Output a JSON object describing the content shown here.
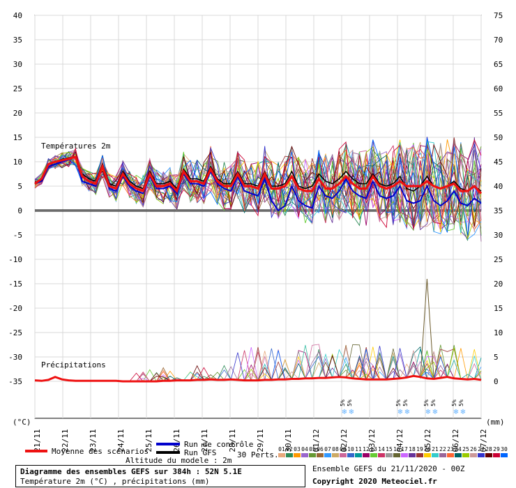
{
  "chart_data": {
    "type": "line",
    "title": "Diagramme des ensembles GEFS sur 384h : 52N 5.1E",
    "subtitle": "Température 2m (°C) , précipitations (mm)",
    "x_dates": [
      "21/11",
      "22/11",
      "23/11",
      "24/11",
      "25/11",
      "26/11",
      "27/11",
      "28/11",
      "29/11",
      "30/11",
      "01/12",
      "02/12",
      "03/12",
      "04/12",
      "05/12",
      "06/12",
      "07/12"
    ],
    "y_left_label": "(°C)",
    "y_right_label": "(mm)",
    "y_left_range": [
      -35,
      40
    ],
    "y_right_range": [
      0,
      75
    ],
    "y_left_ticks": [
      40,
      35,
      30,
      25,
      20,
      15,
      10,
      5,
      0,
      -5,
      -10,
      -15,
      -20,
      -25,
      -30,
      -35
    ],
    "y_right_ticks": [
      75,
      70,
      65,
      60,
      55,
      50,
      45,
      40,
      35,
      30,
      25,
      20,
      15,
      10,
      5,
      0
    ],
    "section_temp": "Températures 2m",
    "section_precip": "Précipitations",
    "temp_mean": [
      5.5,
      6.5,
      9.5,
      10,
      10.3,
      10.6,
      11,
      7,
      6,
      5.5,
      9,
      5,
      4.5,
      7.5,
      5.5,
      4.5,
      4,
      7.5,
      5,
      5,
      5.5,
      4,
      8,
      6,
      6,
      5.5,
      8.5,
      6,
      5,
      5,
      7.5,
      5,
      5,
      4.5,
      7.5,
      4.5,
      4.5,
      5,
      7,
      4.5,
      4,
      4,
      6.5,
      4.5,
      4.5,
      5.5,
      7,
      5.5,
      4.5,
      4.5,
      7,
      5,
      4.5,
      5,
      6,
      5,
      5,
      5,
      6,
      5,
      4.5,
      5,
      5.5,
      4,
      4,
      5,
      3.5
    ],
    "temp_control": [
      5.5,
      6,
      9,
      9.5,
      10,
      10.5,
      11,
      6,
      5.5,
      5,
      9,
      4.5,
      4,
      7,
      5,
      4,
      3.5,
      7,
      4.5,
      4.5,
      5,
      3.5,
      7.5,
      5.5,
      5.5,
      5,
      8,
      5.5,
      4.5,
      4,
      7,
      4,
      3.5,
      3,
      6.5,
      2,
      0,
      1,
      5,
      2,
      1,
      0.5,
      5,
      3,
      2.5,
      4,
      6.5,
      4,
      3,
      2.5,
      6,
      3,
      2.5,
      3,
      5,
      2,
      1.5,
      2,
      5,
      2,
      1,
      2,
      4,
      1.5,
      1,
      2.5,
      1.5
    ],
    "temp_gfs": [
      5.5,
      6.3,
      9.5,
      10,
      10.5,
      10.8,
      11,
      7.5,
      6.5,
      6,
      9.5,
      5.5,
      5,
      8,
      6,
      5,
      4.5,
      8,
      5.5,
      5.5,
      6,
      4.5,
      8.5,
      6.5,
      6.5,
      6,
      9,
      6.5,
      5.5,
      5.5,
      8,
      5.5,
      5.5,
      5,
      8,
      5,
      5,
      5.5,
      8,
      5,
      4.5,
      5,
      7.5,
      6,
      5.5,
      6.5,
      8,
      6.5,
      5.5,
      5.5,
      7.5,
      5.5,
      5,
      5.5,
      7,
      4.5,
      4,
      5,
      7,
      5,
      4.5,
      5,
      6,
      4.5,
      4,
      5,
      4
    ],
    "precip_mean": [
      0.2,
      0.1,
      0.3,
      0.9,
      0.4,
      0.2,
      0.1,
      0.1,
      0.1,
      0.1,
      0.1,
      0.1,
      0.1,
      0,
      0,
      0,
      0,
      0,
      0,
      0.1,
      0.1,
      0.2,
      0.2,
      0.2,
      0.3,
      0.3,
      0.4,
      0.3,
      0.3,
      0.4,
      0.3,
      0.2,
      0.2,
      0.2,
      0.3,
      0.3,
      0.4,
      0.4,
      0.5,
      0.5,
      0.6,
      0.6,
      0.7,
      0.7,
      0.8,
      0.9,
      0.8,
      0.6,
      0.5,
      0.4,
      0.4,
      0.4,
      0.4,
      0.5,
      0.6,
      0.8,
      1.1,
      0.9,
      0.6,
      0.5,
      0.7,
      0.9,
      0.6,
      0.5,
      0.4,
      0.5,
      0.3
    ],
    "precip_spike": {
      "index": 58,
      "value": 21
    },
    "snow_markers": [
      "02/12",
      "04/12",
      "05/12",
      "06/12"
    ],
    "snow_label": "5%",
    "perturbation_count": 30
  },
  "legend": {
    "mean": "Moyenne des scénarios",
    "control": "Run de contrôle",
    "gfs": "Run GFS",
    "altitude": "Altitude du modele : 2m",
    "perts": "30 Perts.",
    "pert_numbers": [
      "01",
      "02",
      "03",
      "04",
      "05",
      "06",
      "07",
      "08",
      "09",
      "10",
      "11",
      "12",
      "13",
      "14",
      "15",
      "16",
      "17",
      "18",
      "19",
      "20",
      "21",
      "22",
      "23",
      "24",
      "25",
      "26",
      "27",
      "28",
      "29",
      "30"
    ],
    "pert_colors": [
      "#e8a87c",
      "#2e8b57",
      "#ff9900",
      "#9966cc",
      "#669933",
      "#996633",
      "#3399ff",
      "#ccaa66",
      "#cc6699",
      "#3366cc",
      "#009999",
      "#990066",
      "#66cc33",
      "#cc3366",
      "#999999",
      "#666633",
      "#cc66ff",
      "#663399",
      "#993333",
      "#ffcc00",
      "#33cccc",
      "#996699",
      "#ff6633",
      "#006666",
      "#99cc00",
      "#cc9999",
      "#3333cc",
      "#660000",
      "#cc0033",
      "#0066ff"
    ]
  },
  "info": {
    "title": "Diagramme des ensembles GEFS sur 384h : 52N 5.1E",
    "subtitle": "Température 2m (°C) , précipitations (mm)"
  },
  "ensemble": "Ensemble GEFS du 21/11/2020 - 00Z",
  "copyright": "Copyright 2020 Meteociel.fr"
}
